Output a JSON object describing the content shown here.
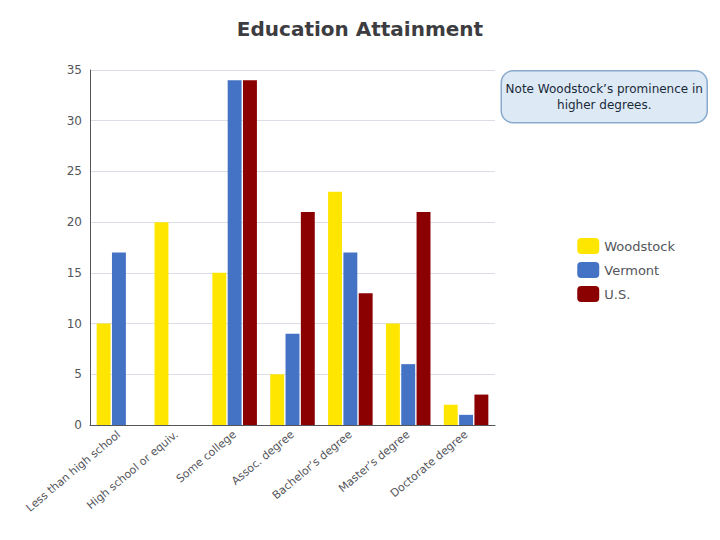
{
  "chart_data": {
    "type": "bar",
    "title": "Education Attainment",
    "categories": [
      "Less than high school",
      "High school or equiv.",
      "Some college",
      "Assoc. degree",
      "Bachelor’s degree",
      "Master’s degree",
      "Doctorate degree"
    ],
    "series": [
      {
        "name": "Woodstock",
        "color": "#FFE600",
        "values": [
          10,
          20,
          15,
          5,
          23,
          10,
          2
        ]
      },
      {
        "name": "Vermont",
        "color": "#4472C4",
        "values": [
          17,
          0,
          34,
          9,
          17,
          6,
          1
        ]
      },
      {
        "name": "U.S.",
        "color": "#8B0000",
        "values": [
          0,
          0,
          34,
          21,
          13,
          21,
          3
        ]
      }
    ],
    "ylim": [
      0,
      35
    ],
    "yticks": [
      0,
      5,
      10,
      15,
      20,
      25,
      30,
      35
    ],
    "grid": true,
    "legend": "right",
    "annotation": "Note Woodstock’s prominence in\nhigher degrees."
  }
}
